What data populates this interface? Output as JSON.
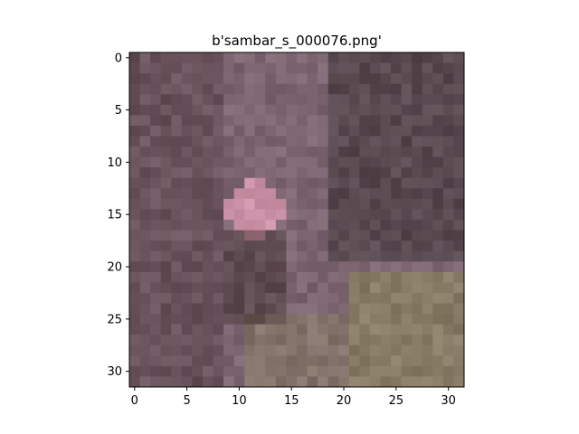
{
  "figure": {
    "title": "b'sambar_s_000076.png'"
  },
  "image": {
    "grid_size": 32,
    "description_colors": {
      "dark_trunk": "#5e4a4e",
      "trunk_mid": "#6d5660",
      "pink_highlight": "#e6a0b8",
      "dark_brown": "#3a2a2a",
      "olive_grass": "#8f8a5e",
      "mauve": "#8c7484",
      "dark_shadow": "#2e2626"
    }
  },
  "axes": {
    "x_ticks": [
      "0",
      "5",
      "10",
      "15",
      "20",
      "25",
      "30"
    ],
    "y_ticks": [
      "0",
      "5",
      "10",
      "15",
      "20",
      "25",
      "30"
    ]
  }
}
